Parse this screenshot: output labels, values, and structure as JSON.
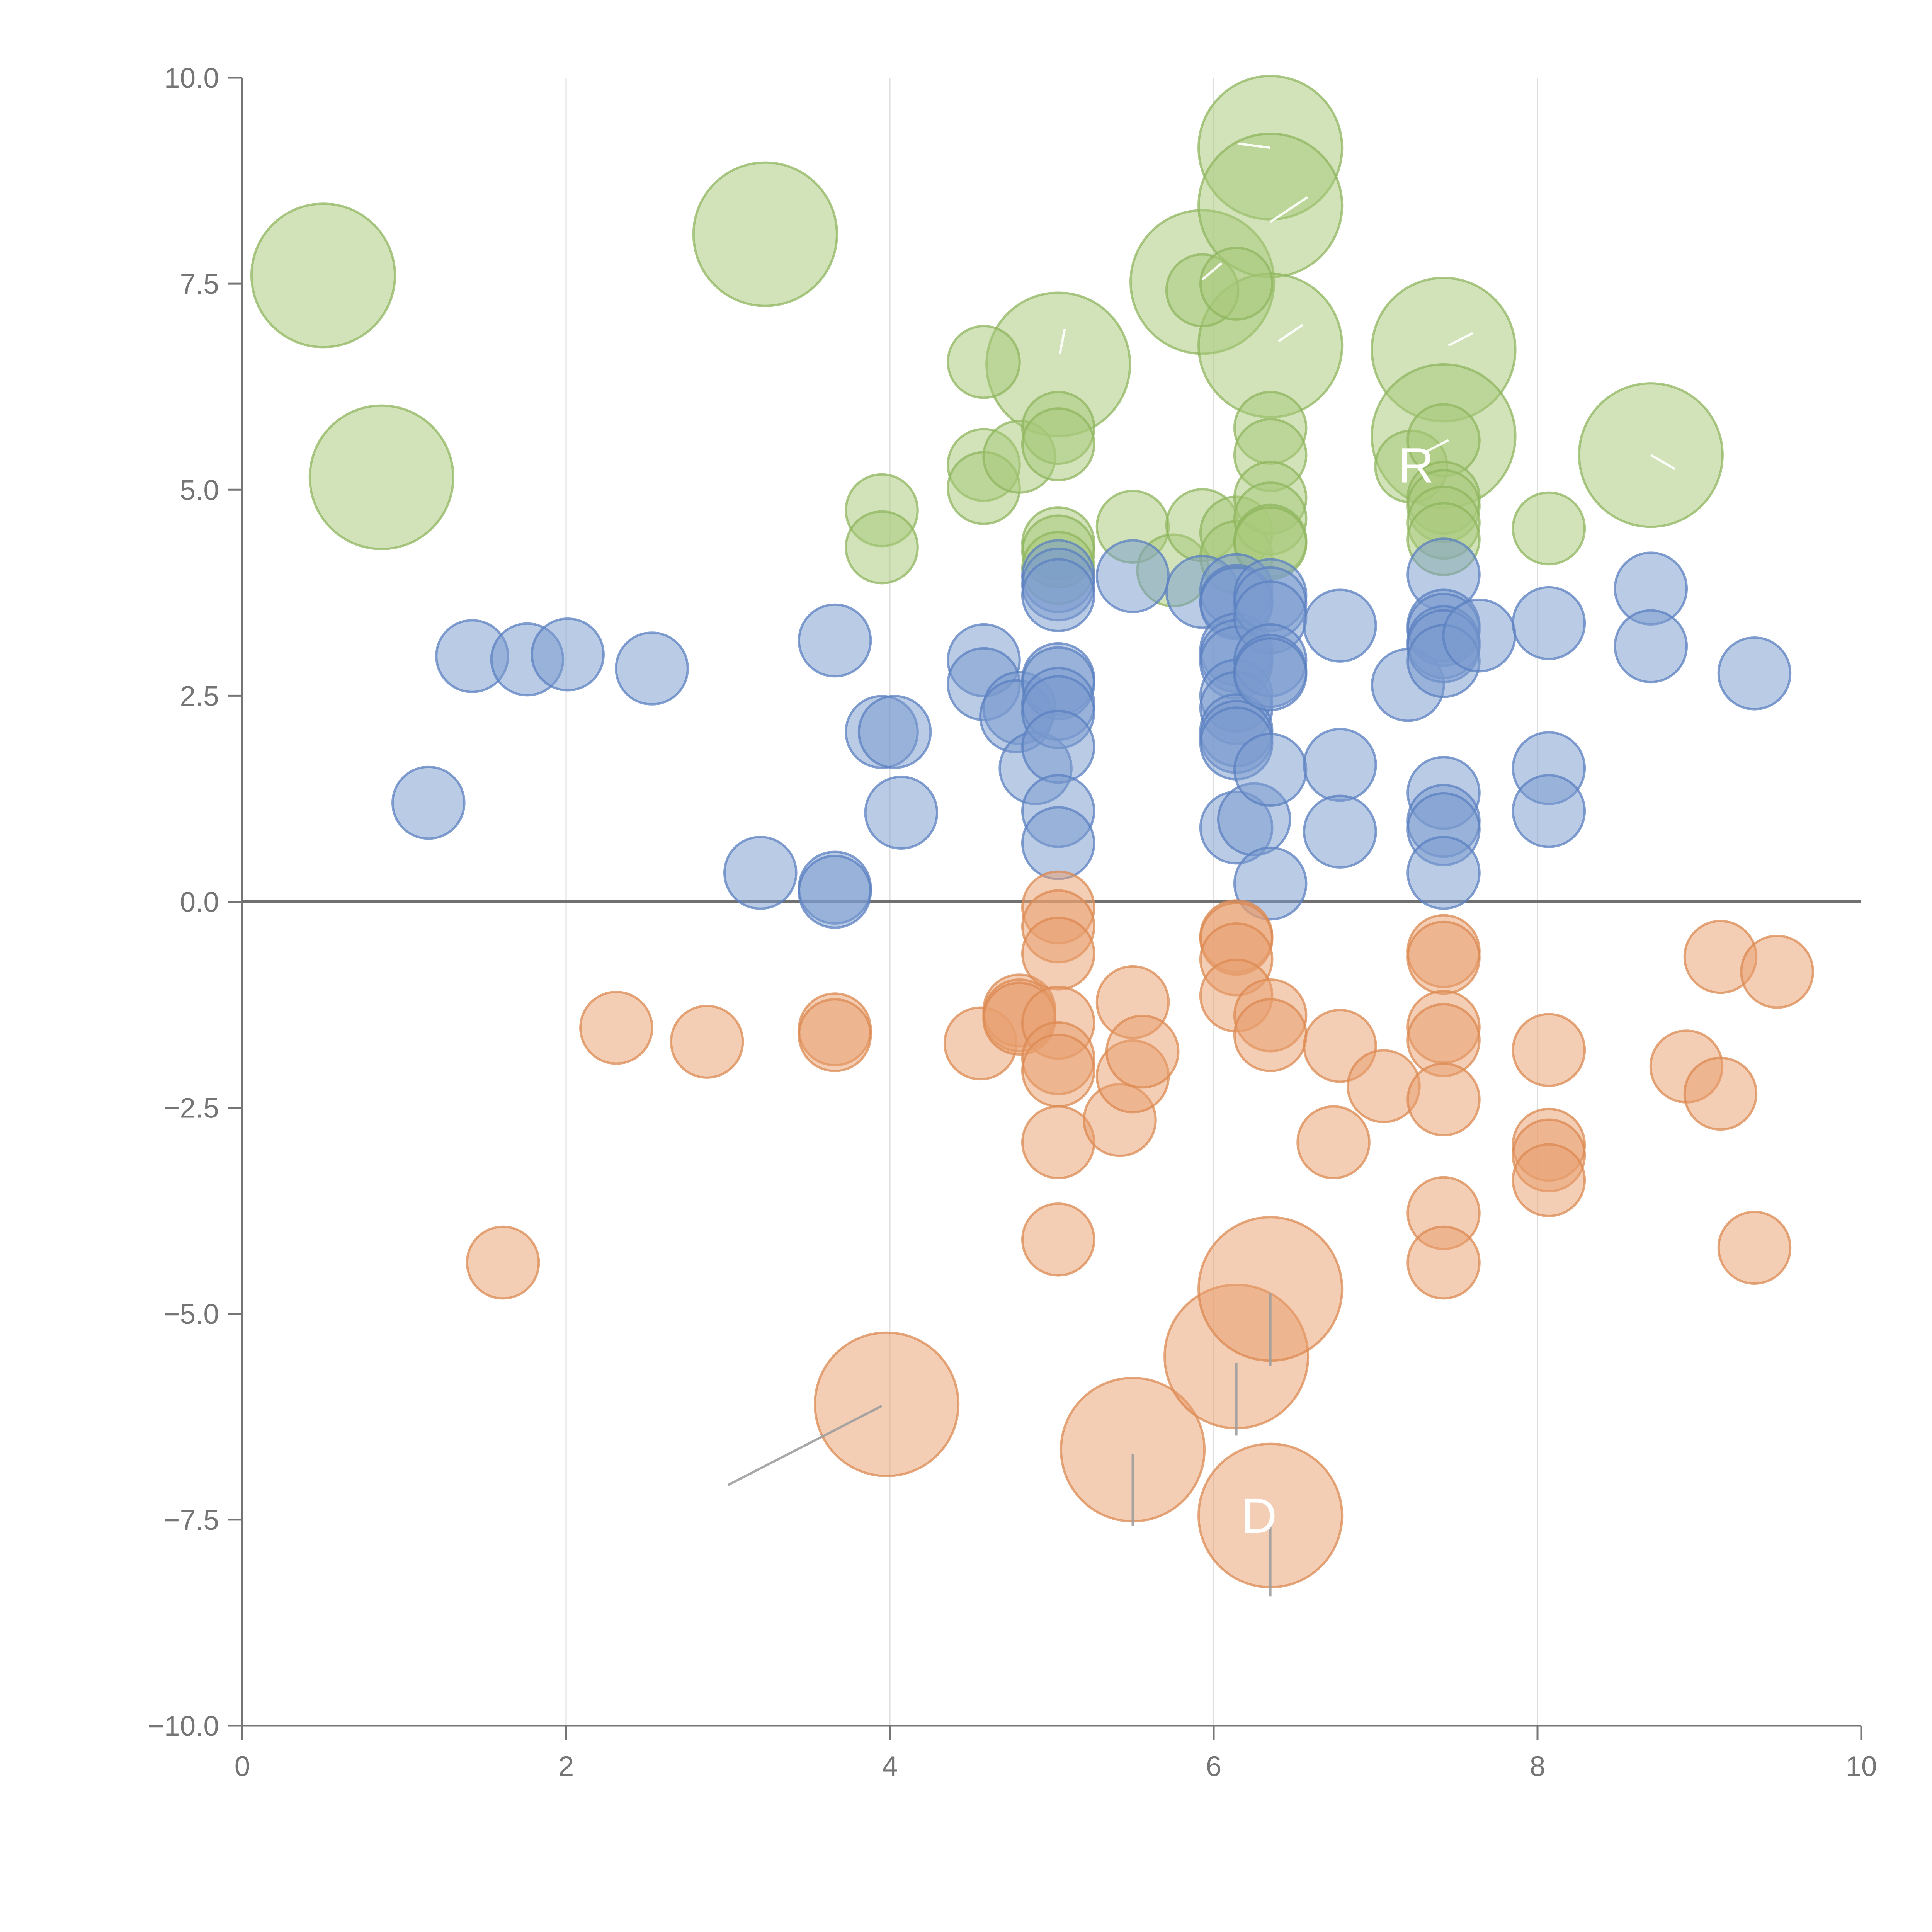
{
  "chart_data": {
    "type": "scatter",
    "title": "",
    "xlabel": "",
    "ylabel": "",
    "xlim": [
      0,
      10
    ],
    "ylim": [
      -10,
      10
    ],
    "x_ticks": [
      0,
      2,
      4,
      6,
      8,
      10
    ],
    "y_ticks": [
      -10,
      -7.5,
      -5,
      -2.5,
      0,
      2.5,
      5,
      7.5,
      10
    ],
    "x_tick_labels": [
      "0",
      "2",
      "4",
      "6",
      "8",
      "10"
    ],
    "y_tick_labels": [
      "−10.0",
      "−7.5",
      "−5.0",
      "−2.5",
      "0.0",
      "2.5",
      "5.0",
      "7.5",
      "10.0"
    ],
    "vertical_gridlines_at": [
      2,
      4,
      6,
      8
    ],
    "zero_line": 0,
    "legend": "none",
    "colors": {
      "green_fill": "#a9c97a",
      "green_stroke": "#8fb55f",
      "blue_fill": "#7b9ccf",
      "blue_stroke": "#5b80c0",
      "orange_fill": "#e8a070",
      "orange_stroke": "#dc8a52",
      "axis": "#757575",
      "grid": "#dedede",
      "zero_line": "#707070",
      "leader_on_point": "#ffffff",
      "leader_off_point": "#9e9e9e"
    },
    "series": [
      {
        "name": "green",
        "color": "#a9c97a",
        "points": [
          {
            "x": 0.5,
            "y": 7.6,
            "r": 3.2
          },
          {
            "x": 0.86,
            "y": 5.15,
            "r": 3.2
          },
          {
            "x": 3.23,
            "y": 8.1,
            "r": 3.2
          },
          {
            "x": 5.93,
            "y": 7.52,
            "r": 3.2
          },
          {
            "x": 5.04,
            "y": 6.52,
            "r": 3.2
          },
          {
            "x": 6.35,
            "y": 9.15,
            "r": 3.2
          },
          {
            "x": 6.35,
            "y": 8.45,
            "r": 3.2
          },
          {
            "x": 6.35,
            "y": 6.75,
            "r": 3.2
          },
          {
            "x": 7.42,
            "y": 6.7,
            "r": 3.2
          },
          {
            "x": 7.42,
            "y": 5.65,
            "r": 3.2
          },
          {
            "x": 8.7,
            "y": 5.42,
            "r": 3.2
          },
          {
            "x": 4.58,
            "y": 6.55,
            "r": 1.6
          },
          {
            "x": 4.58,
            "y": 5.3,
            "r": 1.6
          },
          {
            "x": 4.58,
            "y": 5.02,
            "r": 1.6
          },
          {
            "x": 4.8,
            "y": 5.4,
            "r": 1.6
          },
          {
            "x": 3.95,
            "y": 4.75,
            "r": 1.6
          },
          {
            "x": 3.95,
            "y": 4.3,
            "r": 1.6
          },
          {
            "x": 5.04,
            "y": 5.75,
            "r": 1.6
          },
          {
            "x": 5.04,
            "y": 5.55,
            "r": 1.6
          },
          {
            "x": 5.04,
            "y": 4.35,
            "r": 1.6
          },
          {
            "x": 5.04,
            "y": 4.25,
            "r": 1.6
          },
          {
            "x": 5.04,
            "y": 4.05,
            "r": 1.6
          },
          {
            "x": 5.5,
            "y": 4.55,
            "r": 1.6
          },
          {
            "x": 5.75,
            "y": 4.02,
            "r": 1.6
          },
          {
            "x": 5.93,
            "y": 4.57,
            "r": 1.6
          },
          {
            "x": 5.93,
            "y": 7.42,
            "r": 1.6
          },
          {
            "x": 6.14,
            "y": 7.5,
            "r": 1.6
          },
          {
            "x": 6.14,
            "y": 4.48,
            "r": 1.6
          },
          {
            "x": 6.14,
            "y": 4.18,
            "r": 1.6
          },
          {
            "x": 6.35,
            "y": 5.75,
            "r": 1.6
          },
          {
            "x": 6.35,
            "y": 5.42,
            "r": 1.6
          },
          {
            "x": 6.35,
            "y": 4.9,
            "r": 1.6
          },
          {
            "x": 6.35,
            "y": 4.65,
            "r": 1.6
          },
          {
            "x": 6.35,
            "y": 4.38,
            "r": 1.6
          },
          {
            "x": 6.35,
            "y": 4.35,
            "r": 1.6
          },
          {
            "x": 7.22,
            "y": 5.28,
            "r": 1.6
          },
          {
            "x": 7.42,
            "y": 5.6,
            "r": 1.6
          },
          {
            "x": 7.42,
            "y": 4.9,
            "r": 1.6
          },
          {
            "x": 7.42,
            "y": 4.8,
            "r": 1.6
          },
          {
            "x": 7.42,
            "y": 4.6,
            "r": 1.6
          },
          {
            "x": 7.42,
            "y": 4.4,
            "r": 1.6
          },
          {
            "x": 8.07,
            "y": 4.53,
            "r": 1.6
          }
        ]
      },
      {
        "name": "blue",
        "color": "#7b9ccf",
        "points": [
          {
            "x": 1.42,
            "y": 2.98,
            "r": 1.6
          },
          {
            "x": 1.76,
            "y": 2.94,
            "r": 1.6
          },
          {
            "x": 2.01,
            "y": 3.0,
            "r": 1.6
          },
          {
            "x": 2.53,
            "y": 2.83,
            "r": 1.6
          },
          {
            "x": 1.15,
            "y": 1.2,
            "r": 1.6
          },
          {
            "x": 3.66,
            "y": 3.17,
            "r": 1.6
          },
          {
            "x": 3.2,
            "y": 0.35,
            "r": 1.6
          },
          {
            "x": 3.66,
            "y": 0.17,
            "r": 1.6
          },
          {
            "x": 3.66,
            "y": 0.12,
            "r": 1.6
          },
          {
            "x": 3.95,
            "y": 2.06,
            "r": 1.6
          },
          {
            "x": 4.03,
            "y": 2.06,
            "r": 1.6
          },
          {
            "x": 4.07,
            "y": 1.08,
            "r": 1.6
          },
          {
            "x": 4.58,
            "y": 2.93,
            "r": 1.6
          },
          {
            "x": 4.58,
            "y": 2.64,
            "r": 1.6
          },
          {
            "x": 4.8,
            "y": 2.35,
            "r": 1.6
          },
          {
            "x": 4.78,
            "y": 2.25,
            "r": 1.6
          },
          {
            "x": 4.9,
            "y": 1.62,
            "r": 1.6
          },
          {
            "x": 5.04,
            "y": 3.95,
            "r": 1.6
          },
          {
            "x": 5.04,
            "y": 3.85,
            "r": 1.6
          },
          {
            "x": 5.04,
            "y": 3.72,
            "r": 1.6
          },
          {
            "x": 5.04,
            "y": 2.7,
            "r": 1.6
          },
          {
            "x": 5.04,
            "y": 2.65,
            "r": 1.6
          },
          {
            "x": 5.04,
            "y": 2.4,
            "r": 1.6
          },
          {
            "x": 5.04,
            "y": 2.3,
            "r": 1.6
          },
          {
            "x": 5.04,
            "y": 1.88,
            "r": 1.6
          },
          {
            "x": 5.04,
            "y": 1.1,
            "r": 1.6
          },
          {
            "x": 5.04,
            "y": 0.71,
            "r": 1.6
          },
          {
            "x": 5.5,
            "y": 3.95,
            "r": 1.6
          },
          {
            "x": 5.93,
            "y": 3.76,
            "r": 1.6
          },
          {
            "x": 6.14,
            "y": 3.78,
            "r": 1.6
          },
          {
            "x": 6.14,
            "y": 3.65,
            "r": 1.6
          },
          {
            "x": 6.14,
            "y": 3.62,
            "r": 1.6
          },
          {
            "x": 6.14,
            "y": 3.06,
            "r": 1.6
          },
          {
            "x": 6.14,
            "y": 2.98,
            "r": 1.6
          },
          {
            "x": 6.14,
            "y": 2.9,
            "r": 1.6
          },
          {
            "x": 6.14,
            "y": 2.5,
            "r": 1.6
          },
          {
            "x": 6.14,
            "y": 2.35,
            "r": 1.6
          },
          {
            "x": 6.14,
            "y": 2.08,
            "r": 1.6
          },
          {
            "x": 6.14,
            "y": 2.0,
            "r": 1.6
          },
          {
            "x": 6.14,
            "y": 1.92,
            "r": 1.6
          },
          {
            "x": 6.14,
            "y": 0.9,
            "r": 1.6
          },
          {
            "x": 6.25,
            "y": 1.0,
            "r": 1.6
          },
          {
            "x": 6.35,
            "y": 3.72,
            "r": 1.6
          },
          {
            "x": 6.35,
            "y": 3.62,
            "r": 1.6
          },
          {
            "x": 6.35,
            "y": 3.45,
            "r": 1.6
          },
          {
            "x": 6.35,
            "y": 2.93,
            "r": 1.6
          },
          {
            "x": 6.35,
            "y": 2.8,
            "r": 1.6
          },
          {
            "x": 6.35,
            "y": 2.76,
            "r": 1.6
          },
          {
            "x": 6.35,
            "y": 1.6,
            "r": 1.6
          },
          {
            "x": 6.35,
            "y": 0.22,
            "r": 1.6
          },
          {
            "x": 6.78,
            "y": 3.35,
            "r": 1.6
          },
          {
            "x": 6.78,
            "y": 1.66,
            "r": 1.6
          },
          {
            "x": 6.78,
            "y": 0.85,
            "r": 1.6
          },
          {
            "x": 7.2,
            "y": 2.63,
            "r": 1.6
          },
          {
            "x": 7.42,
            "y": 3.97,
            "r": 1.6
          },
          {
            "x": 7.42,
            "y": 3.35,
            "r": 1.6
          },
          {
            "x": 7.42,
            "y": 3.3,
            "r": 1.6
          },
          {
            "x": 7.42,
            "y": 3.15,
            "r": 1.6
          },
          {
            "x": 7.42,
            "y": 3.1,
            "r": 1.6
          },
          {
            "x": 7.42,
            "y": 2.92,
            "r": 1.6
          },
          {
            "x": 7.42,
            "y": 1.32,
            "r": 1.6
          },
          {
            "x": 7.42,
            "y": 0.98,
            "r": 1.6
          },
          {
            "x": 7.42,
            "y": 0.88,
            "r": 1.6
          },
          {
            "x": 7.42,
            "y": 0.35,
            "r": 1.6
          },
          {
            "x": 7.64,
            "y": 3.23,
            "r": 1.6
          },
          {
            "x": 8.07,
            "y": 3.38,
            "r": 1.6
          },
          {
            "x": 8.07,
            "y": 1.62,
            "r": 1.6
          },
          {
            "x": 8.07,
            "y": 1.1,
            "r": 1.6
          },
          {
            "x": 8.7,
            "y": 3.8,
            "r": 1.6
          },
          {
            "x": 8.7,
            "y": 3.1,
            "r": 1.6
          },
          {
            "x": 9.34,
            "y": 2.77,
            "r": 1.6
          }
        ]
      },
      {
        "name": "orange",
        "color": "#e8a070",
        "points": [
          {
            "x": 2.31,
            "y": -1.53,
            "r": 1.6
          },
          {
            "x": 2.87,
            "y": -1.7,
            "r": 1.6
          },
          {
            "x": 1.61,
            "y": -4.38,
            "r": 1.6
          },
          {
            "x": 3.66,
            "y": -1.55,
            "r": 1.6
          },
          {
            "x": 3.66,
            "y": -1.62,
            "r": 1.6
          },
          {
            "x": 4.56,
            "y": -1.72,
            "r": 1.6
          },
          {
            "x": 4.8,
            "y": -1.32,
            "r": 1.6
          },
          {
            "x": 4.8,
            "y": -1.38,
            "r": 1.6
          },
          {
            "x": 4.8,
            "y": -1.42,
            "r": 1.6
          },
          {
            "x": 5.04,
            "y": -0.07,
            "r": 1.6
          },
          {
            "x": 5.04,
            "y": -0.3,
            "r": 1.6
          },
          {
            "x": 5.04,
            "y": -0.63,
            "r": 1.6
          },
          {
            "x": 5.04,
            "y": -1.47,
            "r": 1.6
          },
          {
            "x": 5.04,
            "y": -1.9,
            "r": 1.6
          },
          {
            "x": 5.04,
            "y": -2.05,
            "r": 1.6
          },
          {
            "x": 5.04,
            "y": -2.92,
            "r": 1.6
          },
          {
            "x": 5.04,
            "y": -4.1,
            "r": 1.6
          },
          {
            "x": 5.42,
            "y": -2.65,
            "r": 1.6
          },
          {
            "x": 5.5,
            "y": -1.22,
            "r": 1.6
          },
          {
            "x": 5.5,
            "y": -2.12,
            "r": 1.6
          },
          {
            "x": 5.56,
            "y": -1.82,
            "r": 1.6
          },
          {
            "x": 6.14,
            "y": -0.42,
            "r": 1.6
          },
          {
            "x": 6.14,
            "y": -0.45,
            "r": 1.6
          },
          {
            "x": 6.14,
            "y": -0.7,
            "r": 1.6
          },
          {
            "x": 6.14,
            "y": -1.14,
            "r": 1.6
          },
          {
            "x": 6.35,
            "y": -1.38,
            "r": 1.6
          },
          {
            "x": 6.35,
            "y": -1.62,
            "r": 1.6
          },
          {
            "x": 6.74,
            "y": -2.92,
            "r": 1.6
          },
          {
            "x": 6.78,
            "y": -1.75,
            "r": 1.6
          },
          {
            "x": 7.05,
            "y": -2.24,
            "r": 1.6
          },
          {
            "x": 7.42,
            "y": -0.6,
            "r": 1.6
          },
          {
            "x": 7.42,
            "y": -0.68,
            "r": 1.6
          },
          {
            "x": 7.42,
            "y": -1.52,
            "r": 1.6
          },
          {
            "x": 7.42,
            "y": -1.68,
            "r": 1.6
          },
          {
            "x": 7.42,
            "y": -2.4,
            "r": 1.6
          },
          {
            "x": 7.42,
            "y": -3.78,
            "r": 1.6
          },
          {
            "x": 7.42,
            "y": -4.38,
            "r": 1.6
          },
          {
            "x": 8.07,
            "y": -1.8,
            "r": 1.6
          },
          {
            "x": 8.07,
            "y": -2.95,
            "r": 1.6
          },
          {
            "x": 8.07,
            "y": -3.08,
            "r": 1.6
          },
          {
            "x": 8.07,
            "y": -3.38,
            "r": 1.6
          },
          {
            "x": 8.92,
            "y": -2.0,
            "r": 1.6
          },
          {
            "x": 9.13,
            "y": -0.67,
            "r": 1.6
          },
          {
            "x": 9.13,
            "y": -2.33,
            "r": 1.6
          },
          {
            "x": 9.34,
            "y": -4.2,
            "r": 1.6
          },
          {
            "x": 9.48,
            "y": -0.85,
            "r": 1.6
          },
          {
            "x": 3.98,
            "y": -6.1,
            "r": 3.2
          },
          {
            "x": 5.5,
            "y": -6.65,
            "r": 3.2
          },
          {
            "x": 6.14,
            "y": -5.52,
            "r": 3.2
          },
          {
            "x": 6.35,
            "y": -4.7,
            "r": 3.2
          },
          {
            "x": 6.35,
            "y": -7.45,
            "r": 3.2
          }
        ]
      }
    ],
    "leader_lines": [
      {
        "x1": 3.95,
        "y1": -6.12,
        "x2": 3.0,
        "y2": -7.08,
        "color": "#9e9e9e"
      },
      {
        "x1": 5.5,
        "y1": -6.7,
        "x2": 5.5,
        "y2": -7.58,
        "color": "#9e9e9e"
      },
      {
        "x1": 6.14,
        "y1": -5.6,
        "x2": 6.14,
        "y2": -6.48,
        "color": "#9e9e9e"
      },
      {
        "x1": 6.35,
        "y1": -4.75,
        "x2": 6.35,
        "y2": -5.63,
        "color": "#9e9e9e"
      },
      {
        "x1": 6.35,
        "y1": -7.55,
        "x2": 6.35,
        "y2": -8.43,
        "color": "#9e9e9e"
      },
      {
        "x1": 6.4,
        "y1": 6.8,
        "x2": 6.55,
        "y2": 7.0,
        "color": "#ffffff"
      },
      {
        "x1": 6.35,
        "y1": 8.25,
        "x2": 6.58,
        "y2": 8.55,
        "color": "#ffffff"
      },
      {
        "x1": 6.35,
        "y1": 9.15,
        "x2": 6.15,
        "y2": 9.2,
        "color": "#ffffff"
      },
      {
        "x1": 5.93,
        "y1": 7.55,
        "x2": 6.05,
        "y2": 7.75,
        "color": "#ffffff"
      },
      {
        "x1": 5.05,
        "y1": 6.65,
        "x2": 5.08,
        "y2": 6.95,
        "color": "#ffffff"
      },
      {
        "x1": 7.45,
        "y1": 6.75,
        "x2": 7.6,
        "y2": 6.9,
        "color": "#ffffff"
      },
      {
        "x1": 7.45,
        "y1": 5.6,
        "x2": 7.3,
        "y2": 5.45,
        "color": "#ffffff"
      },
      {
        "x1": 8.7,
        "y1": 5.42,
        "x2": 8.85,
        "y2": 5.25,
        "color": "#ffffff"
      }
    ],
    "annotations": [
      {
        "text": "R",
        "x": 7.25,
        "y": 5.3
      },
      {
        "text": "D",
        "x": 6.28,
        "y": -7.45
      }
    ]
  }
}
